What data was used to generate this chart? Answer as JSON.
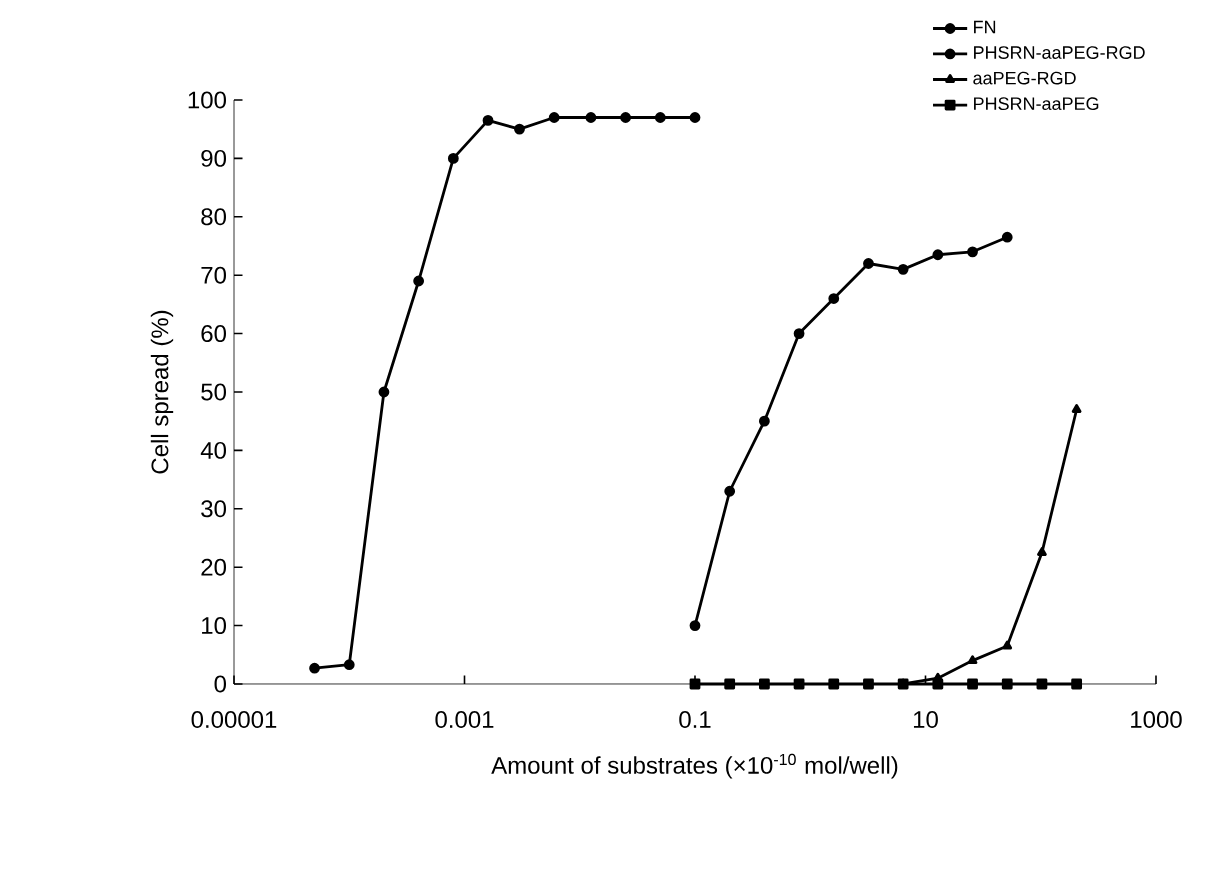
{
  "chart_data": {
    "type": "line",
    "xlabel": "Amount of substrates (×10$^{-10}$ mol/well)",
    "ylabel": "Cell spread (%)",
    "log": "x",
    "xlim": [
      1e-05,
      1000
    ],
    "ylim": [
      0,
      100
    ],
    "xticks": [
      {
        "value": 1e-05,
        "label": "0.00001"
      },
      {
        "value": 0.001,
        "label": "0.001"
      },
      0.1,
      10,
      1000
    ],
    "yticks": [
      0,
      10,
      20,
      30,
      40,
      50,
      60,
      70,
      80,
      90,
      100
    ],
    "legend": "top right",
    "grid": false,
    "series": [
      {
        "name": "FN",
        "color": "#000000",
        "marker": "circle",
        "x": [
          5e-05,
          0.0001,
          0.0002,
          0.0004,
          0.0008,
          0.0016,
          0.003,
          0.006,
          0.0125,
          0.025,
          0.05,
          0.1
        ],
        "values": [
          2.7,
          3.3,
          50,
          69,
          90,
          96.5,
          95,
          97,
          97,
          97,
          97,
          97
        ]
      },
      {
        "name": "PHSRN-aaPEG-RGD",
        "color": "#000000",
        "marker": "circle",
        "x": [
          0.1,
          0.2,
          0.4,
          0.8,
          1.6,
          3.2,
          6.4,
          12.8,
          25.6,
          51.2
        ],
        "values": [
          10,
          33,
          45,
          60,
          66,
          72,
          71,
          73.5,
          74,
          76.5
        ]
      },
      {
        "name": "aaPEG-RGD",
        "color": "#000000",
        "marker": "triangle",
        "x": [
          6.4,
          12.8,
          25.6,
          51.2,
          102.4,
          204.8
        ],
        "values": [
          0,
          1,
          4,
          6.5,
          22.5,
          47
        ]
      },
      {
        "name": "PHSRN-aaPEG",
        "color": "#000000",
        "marker": "square",
        "x": [
          0.1,
          0.2,
          0.4,
          0.8,
          1.6,
          3.2,
          6.4,
          12.8,
          25.6,
          51.2,
          102.4,
          204.8
        ],
        "values": [
          0,
          0,
          0,
          0,
          0,
          0,
          0,
          0,
          0,
          0,
          0,
          0
        ]
      }
    ]
  }
}
